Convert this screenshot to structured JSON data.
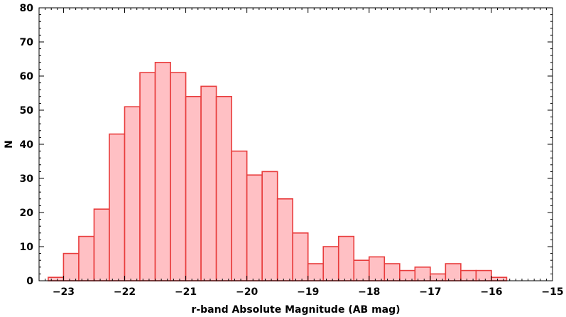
{
  "chart_data": {
    "type": "bar",
    "title": "",
    "xlabel": "r-band Absolute Magnitude (AB mag)",
    "ylabel": "N",
    "xlim": [
      -23.4,
      -15
    ],
    "ylim": [
      0,
      80
    ],
    "x_ticks": [
      -23,
      -22,
      -21,
      -20,
      -19,
      -18,
      -17,
      -16,
      -15
    ],
    "x_tick_labels": [
      "−23",
      "−22",
      "−21",
      "−20",
      "−19",
      "−18",
      "−17",
      "−16",
      "−15"
    ],
    "y_ticks": [
      0,
      10,
      20,
      30,
      40,
      50,
      60,
      70,
      80
    ],
    "y_tick_labels": [
      "0",
      "10",
      "20",
      "30",
      "40",
      "50",
      "60",
      "70",
      "80"
    ],
    "bin_width": 0.25,
    "bin_starts": [
      -23.25,
      -23.0,
      -22.75,
      -22.5,
      -22.25,
      -22.0,
      -21.75,
      -21.5,
      -21.25,
      -21.0,
      -20.75,
      -20.5,
      -20.25,
      -20.0,
      -19.75,
      -19.5,
      -19.25,
      -19.0,
      -18.75,
      -18.5,
      -18.25,
      -18.0,
      -17.75,
      -17.5,
      -17.25,
      -17.0,
      -16.75,
      -16.5,
      -16.25,
      -16.0
    ],
    "values": [
      1,
      8,
      13,
      21,
      43,
      51,
      61,
      64,
      61,
      54,
      57,
      54,
      38,
      31,
      32,
      24,
      14,
      5,
      10,
      13,
      6,
      7,
      5,
      3,
      4,
      2,
      5,
      3,
      3,
      1
    ],
    "grid": false,
    "colors": {
      "bar_fill": "#ffc0c4",
      "bar_edge": "#e83c3c",
      "axis": "#000000"
    }
  }
}
